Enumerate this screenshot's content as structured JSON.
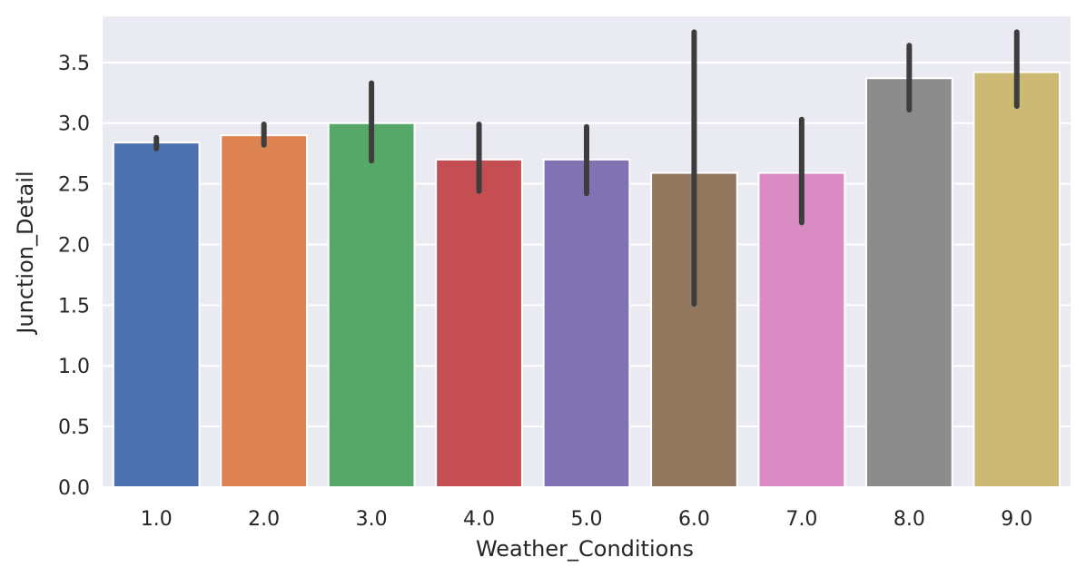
{
  "chart_data": {
    "type": "bar",
    "xlabel": "Weather_Conditions",
    "ylabel": "Junction_Detail",
    "categories": [
      "1.0",
      "2.0",
      "3.0",
      "4.0",
      "5.0",
      "6.0",
      "7.0",
      "8.0",
      "9.0"
    ],
    "values": [
      2.84,
      2.9,
      3.0,
      2.7,
      2.7,
      2.59,
      2.59,
      3.37,
      3.42
    ],
    "ci_low": [
      2.79,
      2.82,
      2.69,
      2.44,
      2.42,
      1.51,
      2.18,
      3.11,
      3.14
    ],
    "ci_high": [
      2.88,
      2.99,
      3.33,
      2.99,
      2.97,
      3.75,
      3.03,
      3.64,
      3.75
    ],
    "ylim": [
      0,
      3.88
    ],
    "yticks": [
      "0.0",
      "0.5",
      "1.0",
      "1.5",
      "2.0",
      "2.5",
      "3.0",
      "3.5"
    ],
    "grid": true,
    "colors": [
      "#4c72b0",
      "#dd8452",
      "#55a868",
      "#c44e52",
      "#8172b3",
      "#937860",
      "#da8bc3",
      "#8c8c8c",
      "#ccb974"
    ],
    "background": "#eaeaf2",
    "error_color": "#3d3d3d"
  }
}
